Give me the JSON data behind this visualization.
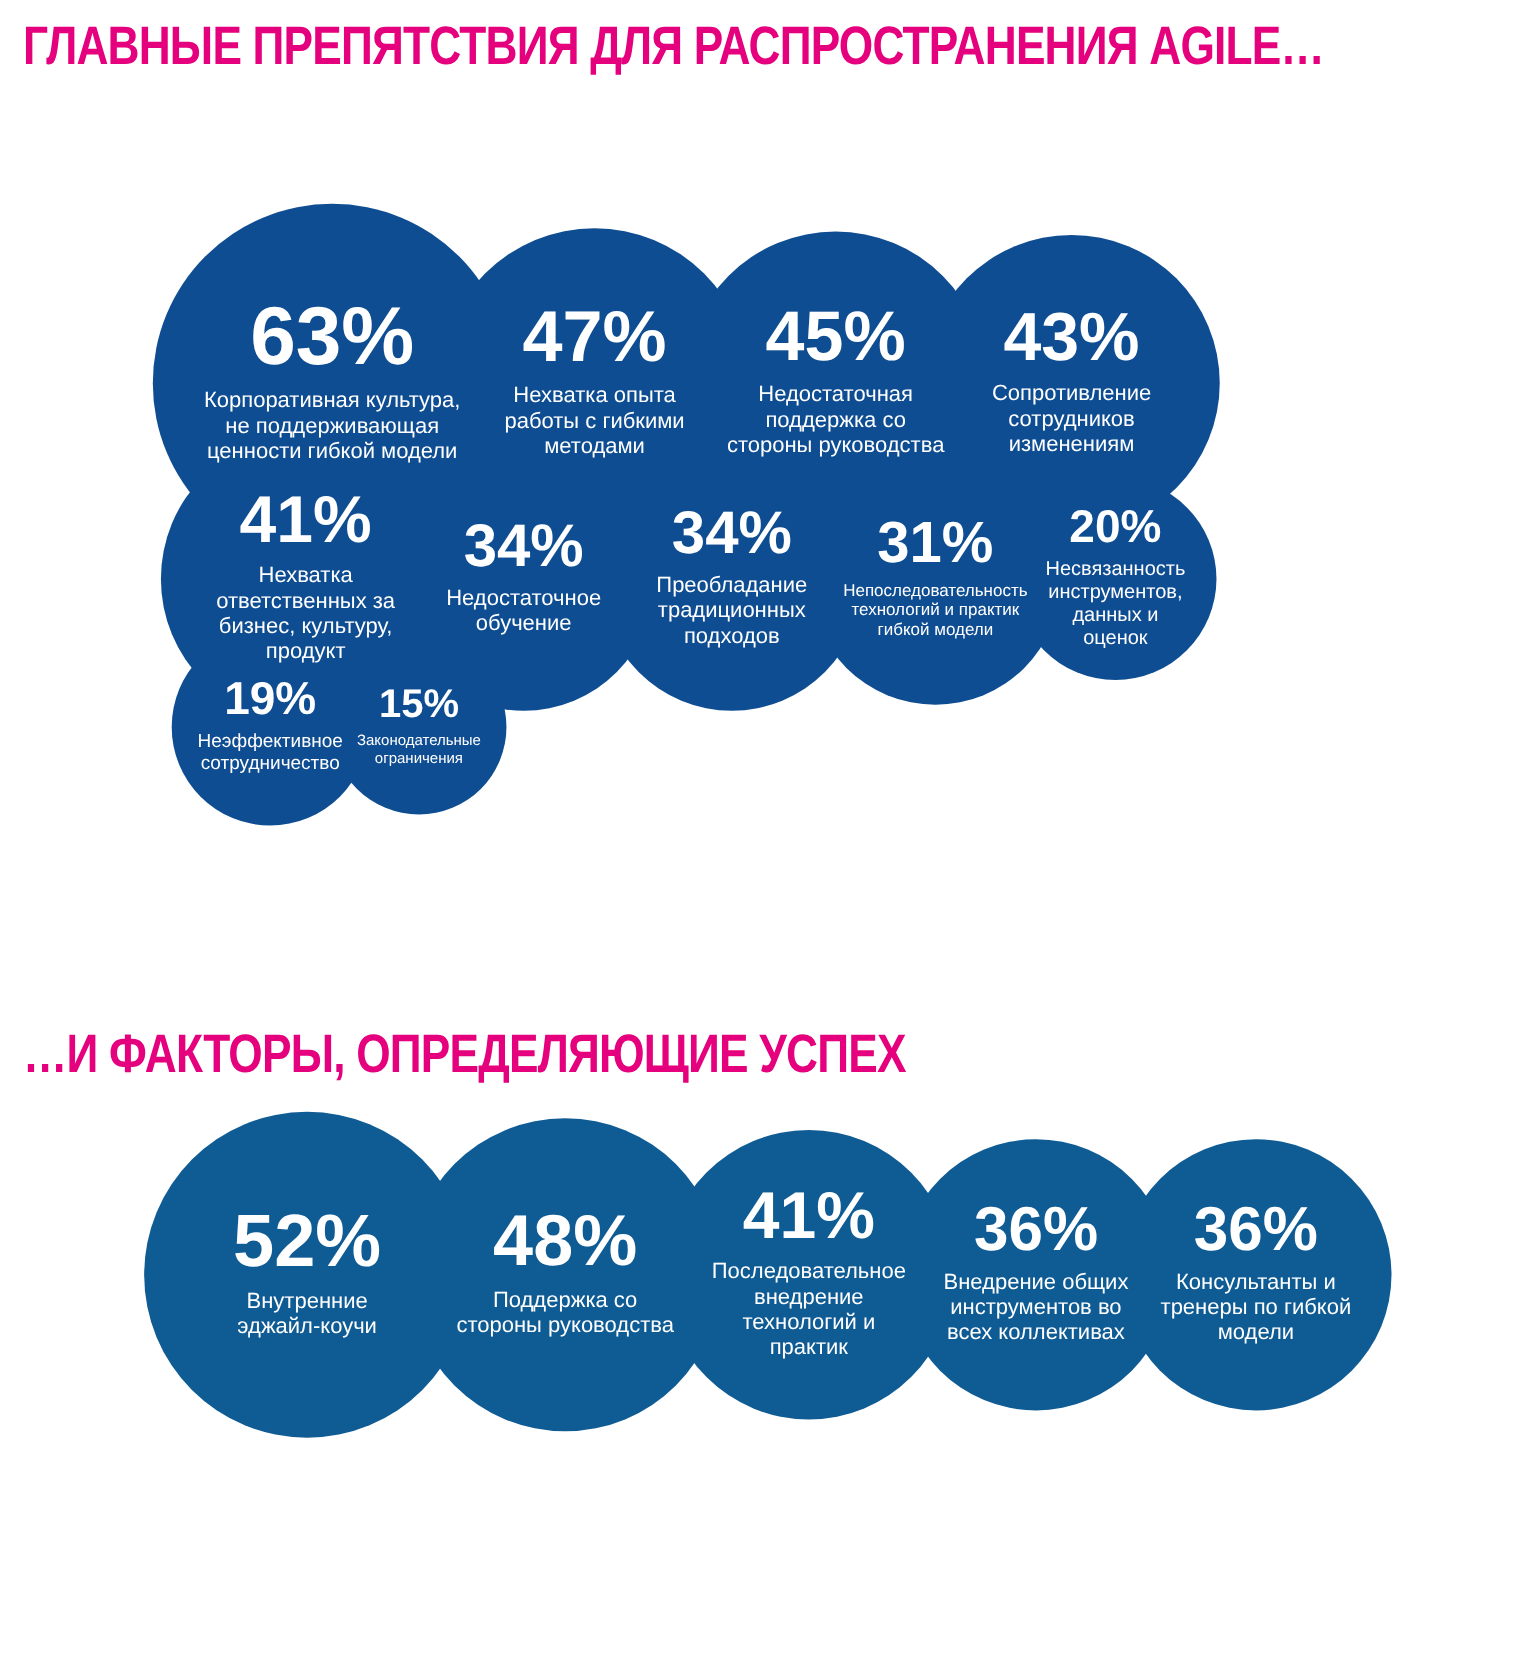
{
  "chart_data": [
    {
      "type": "other",
      "title": "ГЛАВНЫЕ ПРЕПЯТСТВИЯ ДЛЯ РАСПРОСТРАНЕНИЯ AGILE…",
      "color": "#0e4d92",
      "categories": [
        "Корпоративная культура, не поддерживающая ценности гибкой модели",
        "Нехватка опыта работы с гибкими методами",
        "Недостаточная поддержка со стороны руководства",
        "Сопротивление сотрудников изменениям",
        "Нехватка ответственных за бизнес, культуру, продукт",
        "Недостаточное обучение",
        "Преобладание традиционных подходов",
        "Непоследовательность технологий и практик гибкой модели",
        "Несвязанность инструментов, данных и оценок",
        "Неэффективное сотрудничество",
        "Законодательные ограничения"
      ],
      "values": [
        63,
        47,
        45,
        43,
        41,
        34,
        34,
        31,
        20,
        19,
        15
      ],
      "value_labels": [
        "63%",
        "47%",
        "45%",
        "43%",
        "41%",
        "34%",
        "34%",
        "31%",
        "20%",
        "19%",
        "15%"
      ]
    },
    {
      "type": "other",
      "title": "…И ФАКТОРЫ, ОПРЕДЕЛЯЮЩИЕ УСПЕХ",
      "color": "#0f5b94",
      "categories": [
        "Внутренние эджайл-коучи",
        "Поддержка со стороны руководства",
        "Последовательное внедрение технологий и практик",
        "Внедрение общих инструментов во всех коллективах",
        "Консультанты и тренеры по гибкой модели"
      ],
      "values": [
        52,
        48,
        41,
        36,
        36
      ],
      "value_labels": [
        "52%",
        "48%",
        "41%",
        "36%",
        "36%"
      ]
    }
  ]
}
